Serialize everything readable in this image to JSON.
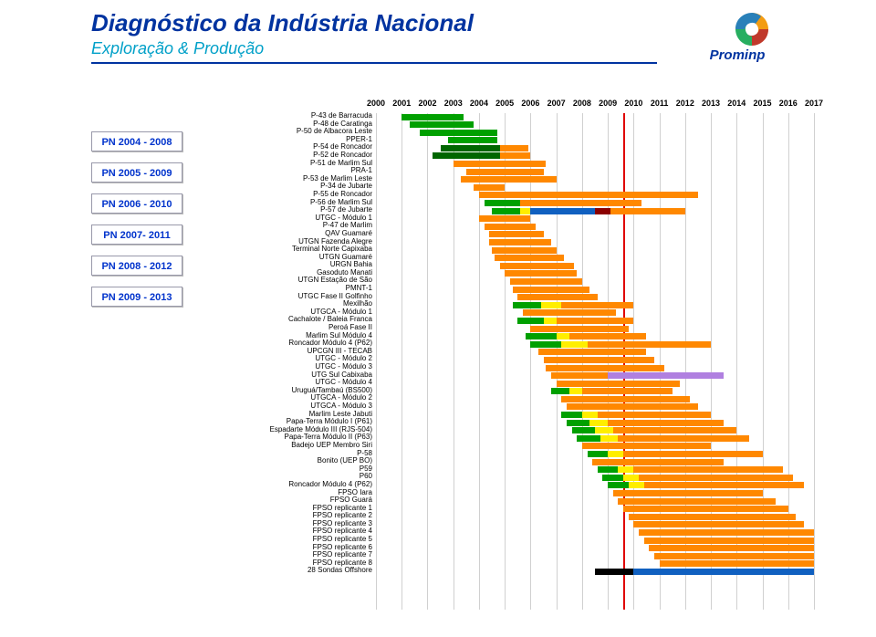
{
  "header": {
    "title": "Diagnóstico da Indústria Nacional",
    "subtitle": "Exploração & Produção",
    "logo_text": "Prominp",
    "logo_colors": [
      "#f39c12",
      "#c0392b",
      "#27ae60",
      "#2980b9"
    ]
  },
  "sidebar": {
    "items": [
      "PN 2004 - 2008",
      "PN 2005 - 2009",
      "PN 2006 - 2010",
      "PN 2007- 2011",
      "PN 2008 - 2012",
      "PN 2009 - 2013"
    ]
  },
  "chart": {
    "type": "gantt",
    "x": {
      "min": 2000,
      "max": 2017,
      "step": 1
    },
    "today": 2009.6,
    "grid_color": "#d0d0d0",
    "colors": {
      "green": "#00a000",
      "darkgreen": "#006600",
      "orange": "#ff8800",
      "yellow": "#ffee00",
      "blue": "#1060c0",
      "darkred": "#8b0000",
      "purple": "#b080e0",
      "black": "#000000"
    },
    "rows": [
      {
        "label": "P-43 de Barracuda",
        "bars": [
          {
            "s": 2001.0,
            "e": 2003.4,
            "c": "green"
          }
        ]
      },
      {
        "label": "P-48 de Caratinga",
        "bars": [
          {
            "s": 2001.3,
            "e": 2003.8,
            "c": "green"
          }
        ]
      },
      {
        "label": "P-50 de Albacora Leste",
        "bars": [
          {
            "s": 2001.7,
            "e": 2004.7,
            "c": "green"
          }
        ]
      },
      {
        "label": "PPER-1",
        "bars": [
          {
            "s": 2002.8,
            "e": 2004.7,
            "c": "green"
          }
        ]
      },
      {
        "label": "P-54 de Roncador",
        "bars": [
          {
            "s": 2002.5,
            "e": 2004.8,
            "c": "darkgreen"
          },
          {
            "s": 2004.8,
            "e": 2005.9,
            "c": "orange"
          }
        ]
      },
      {
        "label": "P-52 de Roncador",
        "bars": [
          {
            "s": 2002.2,
            "e": 2004.8,
            "c": "darkgreen"
          },
          {
            "s": 2004.8,
            "e": 2006.0,
            "c": "orange"
          }
        ]
      },
      {
        "label": "P-51 de Marlim Sul",
        "bars": [
          {
            "s": 2003.0,
            "e": 2006.6,
            "c": "orange"
          }
        ]
      },
      {
        "label": "PRA-1",
        "bars": [
          {
            "s": 2003.5,
            "e": 2006.5,
            "c": "orange"
          }
        ]
      },
      {
        "label": "P-53 de Marlim Leste",
        "bars": [
          {
            "s": 2003.3,
            "e": 2007.0,
            "c": "orange"
          }
        ]
      },
      {
        "label": "P-34 de Jubarte",
        "bars": [
          {
            "s": 2003.8,
            "e": 2005.0,
            "c": "orange"
          }
        ]
      },
      {
        "label": "P-55 de Roncador",
        "bars": [
          {
            "s": 2004.0,
            "e": 2007.3,
            "c": "orange"
          },
          {
            "s": 2007.3,
            "e": 2012.5,
            "c": "orange"
          }
        ]
      },
      {
        "label": "P-56 de Marlim Sul",
        "bars": [
          {
            "s": 2004.2,
            "e": 2005.6,
            "c": "green"
          },
          {
            "s": 2005.6,
            "e": 2010.3,
            "c": "orange"
          }
        ]
      },
      {
        "label": "P-57 de Jubarte",
        "bars": [
          {
            "s": 2004.5,
            "e": 2005.6,
            "c": "green"
          },
          {
            "s": 2005.6,
            "e": 2006.0,
            "c": "yellow"
          },
          {
            "s": 2006.0,
            "e": 2008.5,
            "c": "blue"
          },
          {
            "s": 2008.5,
            "e": 2009.1,
            "c": "darkred"
          },
          {
            "s": 2009.1,
            "e": 2012.0,
            "c": "orange"
          }
        ]
      },
      {
        "label": "UTGC - Módulo 1",
        "bars": [
          {
            "s": 2004.0,
            "e": 2006.0,
            "c": "orange"
          }
        ]
      },
      {
        "label": "P-47 de Marlim",
        "bars": [
          {
            "s": 2004.2,
            "e": 2006.2,
            "c": "orange"
          }
        ]
      },
      {
        "label": "QAV Guamaré",
        "bars": [
          {
            "s": 2004.4,
            "e": 2006.5,
            "c": "orange"
          }
        ]
      },
      {
        "label": "UTGN Fazenda Alegre",
        "bars": [
          {
            "s": 2004.4,
            "e": 2006.8,
            "c": "orange"
          }
        ]
      },
      {
        "label": "Terminal Norte Capixaba",
        "bars": [
          {
            "s": 2004.5,
            "e": 2007.0,
            "c": "orange"
          }
        ]
      },
      {
        "label": "UTGN Guamaré",
        "bars": [
          {
            "s": 2004.6,
            "e": 2007.3,
            "c": "orange"
          }
        ]
      },
      {
        "label": "URGN Bahia",
        "bars": [
          {
            "s": 2004.8,
            "e": 2007.7,
            "c": "orange"
          }
        ]
      },
      {
        "label": "Gasoduto Manati",
        "bars": [
          {
            "s": 2005.0,
            "e": 2007.8,
            "c": "orange"
          }
        ]
      },
      {
        "label": "UTGN Estação de São",
        "bars": [
          {
            "s": 2005.2,
            "e": 2008.0,
            "c": "orange"
          }
        ]
      },
      {
        "label": "PMNT-1",
        "bars": [
          {
            "s": 2005.3,
            "e": 2008.3,
            "c": "orange"
          }
        ]
      },
      {
        "label": "UTGC Fase II Golfinho",
        "bars": [
          {
            "s": 2005.5,
            "e": 2008.6,
            "c": "orange"
          }
        ]
      },
      {
        "label": "Mexilhão",
        "bars": [
          {
            "s": 2005.3,
            "e": 2006.4,
            "c": "green"
          },
          {
            "s": 2006.4,
            "e": 2007.2,
            "c": "yellow"
          },
          {
            "s": 2007.2,
            "e": 2010.0,
            "c": "orange"
          }
        ]
      },
      {
        "label": "UTGCA - Módulo 1",
        "bars": [
          {
            "s": 2005.7,
            "e": 2009.3,
            "c": "orange"
          }
        ]
      },
      {
        "label": "Cachalote / Baleia Franca",
        "bars": [
          {
            "s": 2005.5,
            "e": 2006.5,
            "c": "green"
          },
          {
            "s": 2006.5,
            "e": 2007.0,
            "c": "yellow"
          },
          {
            "s": 2007.0,
            "e": 2010.0,
            "c": "orange"
          }
        ]
      },
      {
        "label": "Peroá Fase II",
        "bars": [
          {
            "s": 2006.0,
            "e": 2009.8,
            "c": "orange"
          }
        ]
      },
      {
        "label": "Marlim Sul Módulo 4",
        "bars": [
          {
            "s": 2005.8,
            "e": 2007.0,
            "c": "green"
          },
          {
            "s": 2007.0,
            "e": 2007.5,
            "c": "yellow"
          },
          {
            "s": 2007.5,
            "e": 2010.5,
            "c": "orange"
          }
        ]
      },
      {
        "label": "Roncador Módulo 4 (P62)",
        "bars": [
          {
            "s": 2006.0,
            "e": 2007.2,
            "c": "green"
          },
          {
            "s": 2007.2,
            "e": 2008.2,
            "c": "yellow"
          },
          {
            "s": 2008.2,
            "e": 2013.0,
            "c": "orange"
          }
        ]
      },
      {
        "label": "UPCGN III - TECAB",
        "bars": [
          {
            "s": 2006.3,
            "e": 2010.5,
            "c": "orange"
          }
        ]
      },
      {
        "label": "UTGC - Módulo 2",
        "bars": [
          {
            "s": 2006.5,
            "e": 2010.8,
            "c": "orange"
          }
        ]
      },
      {
        "label": "UTGC - Módulo 3",
        "bars": [
          {
            "s": 2006.6,
            "e": 2011.2,
            "c": "orange"
          }
        ]
      },
      {
        "label": "UTG Sul Cabixaba",
        "bars": [
          {
            "s": 2006.8,
            "e": 2009.0,
            "c": "orange"
          },
          {
            "s": 2009.0,
            "e": 2013.5,
            "c": "purple"
          }
        ]
      },
      {
        "label": "UTGC - Módulo 4",
        "bars": [
          {
            "s": 2007.0,
            "e": 2011.8,
            "c": "orange"
          }
        ]
      },
      {
        "label": "Uruguá/Tambaú (BS500)",
        "bars": [
          {
            "s": 2006.8,
            "e": 2007.5,
            "c": "green"
          },
          {
            "s": 2007.5,
            "e": 2008.0,
            "c": "yellow"
          },
          {
            "s": 2008.0,
            "e": 2011.5,
            "c": "orange"
          }
        ]
      },
      {
        "label": "UTGCA - Módulo 2",
        "bars": [
          {
            "s": 2007.2,
            "e": 2012.2,
            "c": "orange"
          }
        ]
      },
      {
        "label": "UTGCA - Módulo 3",
        "bars": [
          {
            "s": 2007.4,
            "e": 2012.5,
            "c": "orange"
          }
        ]
      },
      {
        "label": "Marlim Leste Jabuti",
        "bars": [
          {
            "s": 2007.2,
            "e": 2008.0,
            "c": "green"
          },
          {
            "s": 2008.0,
            "e": 2008.6,
            "c": "yellow"
          },
          {
            "s": 2008.6,
            "e": 2013.0,
            "c": "orange"
          }
        ]
      },
      {
        "label": "Papa-Terra Módulo I (P61)",
        "bars": [
          {
            "s": 2007.4,
            "e": 2008.3,
            "c": "green"
          },
          {
            "s": 2008.3,
            "e": 2009.0,
            "c": "yellow"
          },
          {
            "s": 2009.0,
            "e": 2013.5,
            "c": "orange"
          }
        ]
      },
      {
        "label": "Espadarte Módulo III (RJS-504)",
        "bars": [
          {
            "s": 2007.6,
            "e": 2008.5,
            "c": "green"
          },
          {
            "s": 2008.5,
            "e": 2009.2,
            "c": "yellow"
          },
          {
            "s": 2009.2,
            "e": 2014.0,
            "c": "orange"
          }
        ]
      },
      {
        "label": "Papa-Terra Módulo II (P63)",
        "bars": [
          {
            "s": 2007.8,
            "e": 2008.7,
            "c": "green"
          },
          {
            "s": 2008.7,
            "e": 2009.4,
            "c": "yellow"
          },
          {
            "s": 2009.4,
            "e": 2014.5,
            "c": "orange"
          }
        ]
      },
      {
        "label": "Badejo UEP Membro Siri",
        "bars": [
          {
            "s": 2008.0,
            "e": 2013.0,
            "c": "orange"
          }
        ]
      },
      {
        "label": "P-58",
        "bars": [
          {
            "s": 2008.2,
            "e": 2009.0,
            "c": "green"
          },
          {
            "s": 2009.0,
            "e": 2009.6,
            "c": "yellow"
          },
          {
            "s": 2009.6,
            "e": 2015.0,
            "c": "orange"
          }
        ]
      },
      {
        "label": "Bonito (UEP BO)",
        "bars": [
          {
            "s": 2008.4,
            "e": 2013.5,
            "c": "orange"
          }
        ]
      },
      {
        "label": "P59",
        "bars": [
          {
            "s": 2008.6,
            "e": 2009.4,
            "c": "green"
          },
          {
            "s": 2009.4,
            "e": 2010.0,
            "c": "yellow"
          },
          {
            "s": 2010.0,
            "e": 2015.8,
            "c": "orange"
          }
        ]
      },
      {
        "label": "P60",
        "bars": [
          {
            "s": 2008.8,
            "e": 2009.6,
            "c": "green"
          },
          {
            "s": 2009.6,
            "e": 2010.2,
            "c": "yellow"
          },
          {
            "s": 2010.2,
            "e": 2016.2,
            "c": "orange"
          }
        ]
      },
      {
        "label": "Roncador Módulo 4 (P62)",
        "bars": [
          {
            "s": 2009.0,
            "e": 2009.8,
            "c": "green"
          },
          {
            "s": 2009.8,
            "e": 2010.4,
            "c": "yellow"
          },
          {
            "s": 2010.4,
            "e": 2016.6,
            "c": "orange"
          }
        ]
      },
      {
        "label": "FPSO Iara",
        "bars": [
          {
            "s": 2009.2,
            "e": 2015.0,
            "c": "orange"
          }
        ]
      },
      {
        "label": "FPSO Guará",
        "bars": [
          {
            "s": 2009.4,
            "e": 2015.5,
            "c": "orange"
          }
        ]
      },
      {
        "label": "FPSO replicante 1",
        "bars": [
          {
            "s": 2009.6,
            "e": 2016.0,
            "c": "orange"
          }
        ]
      },
      {
        "label": "FPSO replicante 2",
        "bars": [
          {
            "s": 2009.8,
            "e": 2016.3,
            "c": "orange"
          }
        ]
      },
      {
        "label": "FPSO replicante 3",
        "bars": [
          {
            "s": 2010.0,
            "e": 2016.6,
            "c": "orange"
          }
        ]
      },
      {
        "label": "FPSO replicante 4",
        "bars": [
          {
            "s": 2010.2,
            "e": 2017.0,
            "c": "orange"
          }
        ]
      },
      {
        "label": "FPSO replicante 5",
        "bars": [
          {
            "s": 2010.4,
            "e": 2017.0,
            "c": "orange"
          }
        ]
      },
      {
        "label": "FPSO replicante 6",
        "bars": [
          {
            "s": 2010.6,
            "e": 2017.0,
            "c": "orange"
          }
        ]
      },
      {
        "label": "FPSO replicante 7",
        "bars": [
          {
            "s": 2010.8,
            "e": 2017.0,
            "c": "orange"
          }
        ]
      },
      {
        "label": "FPSO replicante 8",
        "bars": [
          {
            "s": 2011.0,
            "e": 2017.0,
            "c": "orange"
          }
        ]
      },
      {
        "label": "28 Sondas Offshore",
        "bars": [
          {
            "s": 2008.5,
            "e": 2010.0,
            "c": "black"
          },
          {
            "s": 2010.0,
            "e": 2017.0,
            "c": "blue"
          }
        ]
      }
    ]
  }
}
